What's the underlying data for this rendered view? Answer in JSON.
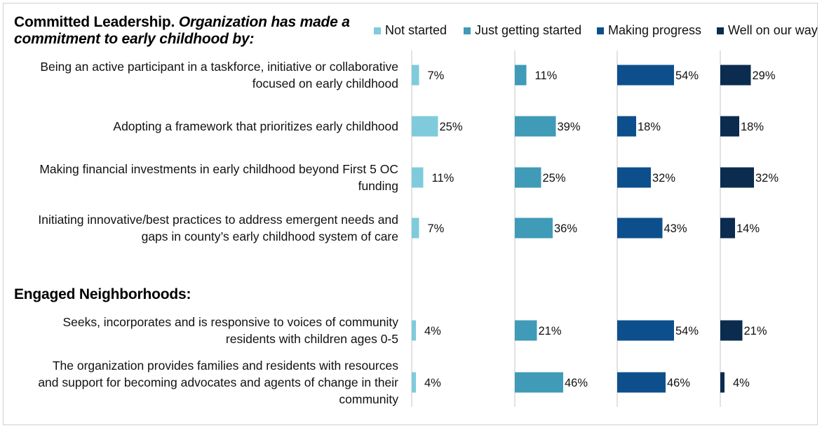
{
  "chart_data": {
    "type": "bar",
    "orientation": "horizontal",
    "layout": "small-multiples-by-series",
    "title": "Committed Leadership.",
    "title_italic": "Organization has made a",
    "title_line2": "commitment to early childhood by:",
    "section2_title": "Engaged Neighborhoods:",
    "value_suffix": "%",
    "xlim": [
      0,
      100
    ],
    "categories": [
      [
        "Being an active participant in a taskforce, initiative or collaborative",
        "focused on early childhood"
      ],
      [
        "Adopting a framework that prioritizes early childhood"
      ],
      [
        "Making financial investments in early childhood beyond First 5 OC",
        "funding"
      ],
      [
        "Initiating innovative/best practices to address emergent needs and",
        "gaps in county’s early childhood system of care"
      ],
      [
        "Seeks, incorporates and is responsive to voices of community",
        "residents with children ages 0-5"
      ],
      [
        "The organization provides families and residents with resources",
        "and support for becoming advocates and agents of change in their",
        "community"
      ]
    ],
    "series": [
      {
        "name": "Not started",
        "color": "#7fcbdb",
        "values": [
          7,
          25,
          11,
          7,
          4,
          4
        ]
      },
      {
        "name": "Just getting started",
        "color": "#3f9bb7",
        "values": [
          11,
          39,
          25,
          36,
          21,
          46
        ]
      },
      {
        "name": "Making progress",
        "color": "#0d4f8c",
        "values": [
          54,
          18,
          32,
          43,
          54,
          46
        ]
      },
      {
        "name": "Well on our way",
        "color": "#0b2b4f",
        "values": [
          29,
          18,
          32,
          14,
          21,
          4
        ]
      }
    ]
  }
}
